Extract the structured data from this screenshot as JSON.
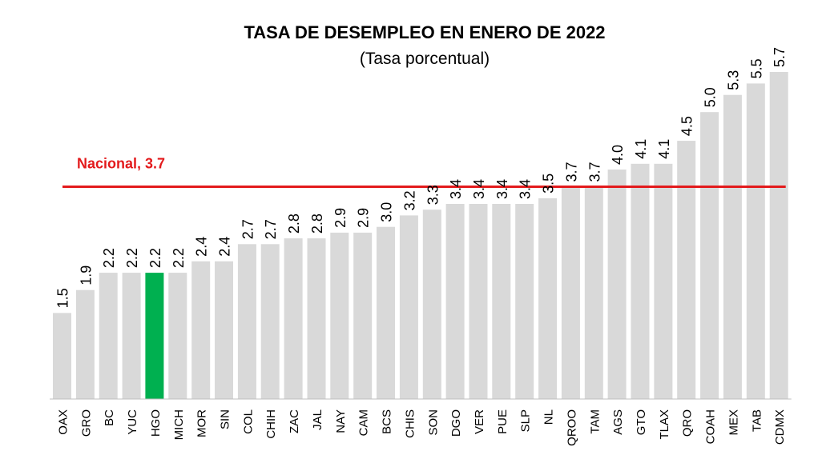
{
  "chart_data": {
    "type": "bar",
    "title": "TASA DE DESEMPLEO EN ENERO DE 2022",
    "subtitle": "(Tasa porcentual)",
    "xlabel": "",
    "ylabel": "",
    "ylim": [
      0,
      5.7
    ],
    "grid": false,
    "categories": [
      "OAX",
      "GRO",
      "BC",
      "YUC",
      "HGO",
      "MICH",
      "MOR",
      "SIN",
      "COL",
      "CHIH",
      "ZAC",
      "JAL",
      "NAY",
      "CAM",
      "BCS",
      "CHIS",
      "SON",
      "DGO",
      "VER",
      "PUE",
      "SLP",
      "NL",
      "QROO",
      "TAM",
      "AGS",
      "GTO",
      "TLAX",
      "QRO",
      "COAH",
      "MEX",
      "TAB",
      "CDMX"
    ],
    "values": [
      1.5,
      1.9,
      2.2,
      2.2,
      2.2,
      2.2,
      2.4,
      2.4,
      2.7,
      2.7,
      2.8,
      2.8,
      2.9,
      2.9,
      3.0,
      3.2,
      3.3,
      3.4,
      3.4,
      3.4,
      3.4,
      3.5,
      3.7,
      3.7,
      4.0,
      4.1,
      4.1,
      4.5,
      5.0,
      5.3,
      5.5,
      5.7
    ],
    "value_labels": [
      "1.5",
      "1.9",
      "2.2",
      "2.2",
      "2.2",
      "2.2",
      "2.4",
      "2.4",
      "2.7",
      "2.7",
      "2.8",
      "2.8",
      "2.9",
      "2.9",
      "3.0",
      "3.2",
      "3.3",
      "3.4",
      "3.4",
      "3.4",
      "3.4",
      "3.5",
      "3.7",
      "3.7",
      "4.0",
      "4.1",
      "4.1",
      "4.5",
      "5.0",
      "5.3",
      "5.5",
      "5.7"
    ],
    "highlight_category": "HGO",
    "colors": {
      "bar": "#d9d9d9",
      "highlight": "#00b050",
      "reference": "#e31a1c",
      "text": "#000000"
    },
    "reference_line": {
      "label": "Nacional, 3.7",
      "value": 3.7
    }
  }
}
